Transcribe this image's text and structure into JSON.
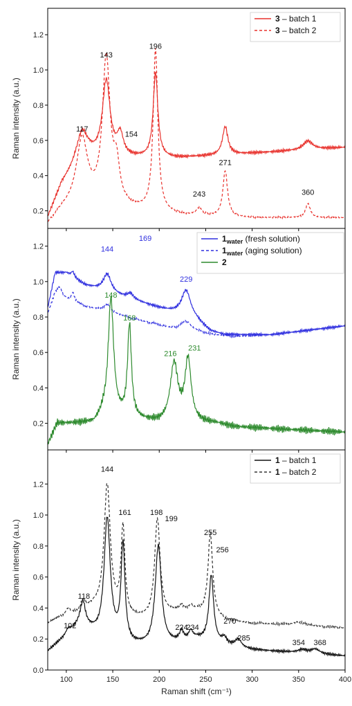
{
  "figure": {
    "xlabel": "Raman shift (cm⁻¹)",
    "ylabel": "Raman intensity (a.u.)"
  },
  "chart_data": [
    {
      "type": "line",
      "panel": "top",
      "xlim": [
        80,
        400
      ],
      "ylim": [
        0.1,
        1.35
      ],
      "yticks": [
        0.2,
        0.4,
        0.6,
        0.8,
        1.0,
        1.2
      ],
      "ytick_labels": [
        "0.2",
        "0.4",
        "0.6",
        "0.8",
        "1.0",
        "1.2"
      ],
      "ylabel": "Raman intensity (a.u.)",
      "legend_position": "top-right",
      "series": [
        {
          "name": "3 – batch 1",
          "legend_bold": "3",
          "legend_rest": " – batch 1",
          "color": "#e8312c",
          "dash": "solid",
          "baseline": [
            [
              80,
              0.16
            ],
            [
              95,
              0.35
            ],
            [
              110,
              0.45
            ],
            [
              125,
              0.5
            ],
            [
              175,
              0.5
            ],
            [
              220,
              0.5
            ],
            [
              280,
              0.52
            ],
            [
              340,
              0.54
            ],
            [
              400,
              0.56
            ]
          ],
          "peaks": [
            [
              117,
              0.17,
              7
            ],
            [
              143,
              0.43,
              5
            ],
            [
              158,
              0.12,
              4
            ],
            [
              196,
              0.48,
              3
            ],
            [
              271,
              0.16,
              3.5
            ],
            [
              360,
              0.05,
              6
            ]
          ],
          "noise": 0.006
        },
        {
          "name": "3 – batch 2",
          "legend_bold": "3",
          "legend_rest": " – batch 2",
          "color": "#e8312c",
          "dash": "4,3",
          "baseline": [
            [
              80,
              0.12
            ],
            [
              95,
              0.2
            ],
            [
              110,
              0.24
            ],
            [
              125,
              0.24
            ],
            [
              180,
              0.2
            ],
            [
              230,
              0.17
            ],
            [
              300,
              0.16
            ],
            [
              400,
              0.16
            ]
          ],
          "peaks": [
            [
              117,
              0.36,
              7
            ],
            [
              143,
              0.82,
              5
            ],
            [
              154,
              0.2,
              4
            ],
            [
              196,
              0.92,
              3
            ],
            [
              243,
              0.04,
              4
            ],
            [
              271,
              0.26,
              3
            ],
            [
              360,
              0.08,
              3
            ]
          ],
          "noise": 0.003
        }
      ],
      "annotations": [
        {
          "text": "117",
          "x": 117,
          "y": 0.65
        },
        {
          "text": "143",
          "x": 143,
          "y": 1.07
        },
        {
          "text": "196",
          "x": 196,
          "y": 1.12
        },
        {
          "text": "154",
          "x": 170,
          "y": 0.62
        },
        {
          "text": "271",
          "x": 271,
          "y": 0.46
        },
        {
          "text": "243",
          "x": 243,
          "y": 0.28
        },
        {
          "text": "360",
          "x": 360,
          "y": 0.29
        }
      ]
    },
    {
      "type": "line",
      "panel": "middle",
      "xlim": [
        80,
        400
      ],
      "ylim": [
        0.05,
        1.3
      ],
      "yticks": [
        0.2,
        0.4,
        0.6,
        0.8,
        1.0,
        1.2
      ],
      "ytick_labels": [
        "0.2",
        "0.4",
        "0.6",
        "0.8",
        "1.0",
        "1.2"
      ],
      "ylabel": "Raman intensity (a.u.)",
      "legend_position": "top-right",
      "series": [
        {
          "name": "1water (fresh solution)",
          "legend_bold": "1",
          "legend_sub": "water",
          "legend_rest": " (fresh solution)",
          "color": "#2f2fdf",
          "dash": "solid",
          "baseline": [
            [
              80,
              0.85
            ],
            [
              88,
              1.05
            ],
            [
              100,
              1.05
            ],
            [
              120,
              0.98
            ],
            [
              140,
              0.95
            ],
            [
              170,
              0.9
            ],
            [
              200,
              0.85
            ],
            [
              220,
              0.82
            ],
            [
              240,
              0.78
            ],
            [
              255,
              0.72
            ],
            [
              270,
              0.7
            ],
            [
              320,
              0.7
            ],
            [
              400,
              0.75
            ]
          ],
          "peaks": [
            [
              107,
              0.03,
              2
            ],
            [
              144,
              0.1,
              5
            ],
            [
              169,
              0.03,
              4
            ],
            [
              229,
              0.15,
              6
            ]
          ],
          "noise": 0.005
        },
        {
          "name": "1water (aging solution)",
          "legend_bold": "1",
          "legend_sub": "water",
          "legend_rest": " (aging solution)",
          "color": "#2f2fdf",
          "dash": "4,3",
          "baseline": [
            [
              80,
              0.82
            ],
            [
              88,
              0.93
            ],
            [
              100,
              0.9
            ],
            [
              120,
              0.86
            ],
            [
              150,
              0.82
            ],
            [
              180,
              0.78
            ],
            [
              210,
              0.74
            ],
            [
              240,
              0.72
            ],
            [
              260,
              0.7
            ],
            [
              280,
              0.69
            ],
            [
              320,
              0.7
            ],
            [
              400,
              0.75
            ]
          ],
          "peaks": [
            [
              93,
              0.05,
              3
            ],
            [
              107,
              0.05,
              2
            ],
            [
              144,
              0.04,
              5
            ],
            [
              229,
              0.05,
              6
            ]
          ],
          "noise": 0.004
        },
        {
          "name": "2",
          "legend_bold": "2",
          "legend_rest": "",
          "color": "#2d8a2d",
          "dash": "solid",
          "baseline": [
            [
              80,
              0.08
            ],
            [
              90,
              0.2
            ],
            [
              100,
              0.2
            ],
            [
              130,
              0.2
            ],
            [
              140,
              0.25
            ],
            [
              200,
              0.2
            ],
            [
              260,
              0.2
            ],
            [
              280,
              0.18
            ],
            [
              320,
              0.17
            ],
            [
              400,
              0.15
            ]
          ],
          "peaks": [
            [
              148,
              0.66,
              3.5
            ],
            [
              168,
              0.52,
              2.5
            ],
            [
              216,
              0.33,
              5
            ],
            [
              231,
              0.35,
              4
            ]
          ],
          "noise": 0.012
        }
      ],
      "annotations": [
        {
          "text": "144",
          "x": 144,
          "y": 1.17,
          "color": "#2f2fdf"
        },
        {
          "text": "169",
          "x": 185,
          "y": 1.23,
          "color": "#2f2fdf"
        },
        {
          "text": "229",
          "x": 229,
          "y": 1.0,
          "color": "#2f2fdf"
        },
        {
          "text": "148",
          "x": 148,
          "y": 0.91,
          "color": "#2d8a2d"
        },
        {
          "text": "168",
          "x": 168,
          "y": 0.78,
          "color": "#2d8a2d"
        },
        {
          "text": "216",
          "x": 212,
          "y": 0.58,
          "color": "#2d8a2d"
        },
        {
          "text": "231",
          "x": 238,
          "y": 0.61,
          "color": "#2d8a2d"
        }
      ]
    },
    {
      "type": "line",
      "panel": "bottom",
      "xlim": [
        80,
        400
      ],
      "ylim": [
        0.0,
        1.42
      ],
      "yticks": [
        0.0,
        0.2,
        0.4,
        0.6,
        0.8,
        1.0,
        1.2
      ],
      "ytick_labels": [
        "0.0",
        "0.2",
        "0.4",
        "0.6",
        "0.8",
        "1.0",
        "1.2"
      ],
      "xticks": [
        100,
        150,
        200,
        250,
        300,
        350,
        400
      ],
      "xtick_labels": [
        "100",
        "150",
        "200",
        "250",
        "300",
        "350",
        "400"
      ],
      "xlabel": "Raman shift (cm⁻¹)",
      "ylabel": "Raman intensity (a.u.)",
      "legend_position": "top-right",
      "series": [
        {
          "name": "1 – batch 1",
          "legend_bold": "1",
          "legend_rest": " – batch 1",
          "color": "#111111",
          "dash": "solid",
          "baseline": [
            [
              80,
              0.12
            ],
            [
              100,
              0.22
            ],
            [
              115,
              0.3
            ],
            [
              135,
              0.22
            ],
            [
              170,
              0.16
            ],
            [
              190,
              0.15
            ],
            [
              215,
              0.17
            ],
            [
              240,
              0.2
            ],
            [
              270,
              0.16
            ],
            [
              300,
              0.13
            ],
            [
              350,
              0.11
            ],
            [
              400,
              0.09
            ]
          ],
          "peaks": [
            [
              102,
              0.03,
              3
            ],
            [
              118,
              0.14,
              3
            ],
            [
              144,
              0.77,
              4
            ],
            [
              161,
              0.62,
              2.5
            ],
            [
              199,
              0.64,
              4
            ],
            [
              224,
              0.06,
              2.5
            ],
            [
              234,
              0.05,
              2.5
            ],
            [
              256,
              0.43,
              3
            ],
            [
              270,
              0.04,
              3
            ],
            [
              285,
              0.05,
              4
            ],
            [
              354,
              0.02,
              6
            ],
            [
              368,
              0.03,
              6
            ]
          ],
          "noise": 0.006
        },
        {
          "name": "1 – batch 2",
          "legend_bold": "1",
          "legend_rest": " – batch 2",
          "color": "#333333",
          "dash": "4,3",
          "baseline": [
            [
              80,
              0.3
            ],
            [
              95,
              0.34
            ],
            [
              110,
              0.36
            ],
            [
              130,
              0.4
            ],
            [
              170,
              0.33
            ],
            [
              190,
              0.33
            ],
            [
              215,
              0.37
            ],
            [
              240,
              0.38
            ],
            [
              270,
              0.32
            ],
            [
              300,
              0.3
            ],
            [
              350,
              0.29
            ],
            [
              400,
              0.27
            ]
          ],
          "peaks": [
            [
              102,
              0.04,
              3
            ],
            [
              118,
              0.06,
              3
            ],
            [
              144,
              0.82,
              4
            ],
            [
              161,
              0.56,
              2.5
            ],
            [
              198,
              0.63,
              3.5
            ],
            [
              224,
              0.03,
              2.5
            ],
            [
              234,
              0.03,
              2.5
            ],
            [
              255,
              0.53,
              3
            ],
            [
              350,
              0.02,
              6
            ]
          ],
          "noise": 0.005
        }
      ],
      "annotations": [
        {
          "text": "102",
          "x": 104,
          "y": 0.27
        },
        {
          "text": "118",
          "x": 119,
          "y": 0.46
        },
        {
          "text": "144",
          "x": 144,
          "y": 1.28
        },
        {
          "text": "161",
          "x": 163,
          "y": 1.0
        },
        {
          "text": "198",
          "x": 197,
          "y": 1.0
        },
        {
          "text": "199",
          "x": 213,
          "y": 0.96
        },
        {
          "text": "255",
          "x": 255,
          "y": 0.87
        },
        {
          "text": "256",
          "x": 268,
          "y": 0.76
        },
        {
          "text": "224",
          "x": 224,
          "y": 0.26
        },
        {
          "text": "234",
          "x": 236,
          "y": 0.26
        },
        {
          "text": "270",
          "x": 276,
          "y": 0.3
        },
        {
          "text": "285",
          "x": 291,
          "y": 0.19
        },
        {
          "text": "354",
          "x": 350,
          "y": 0.16
        },
        {
          "text": "368",
          "x": 373,
          "y": 0.16
        }
      ]
    }
  ]
}
